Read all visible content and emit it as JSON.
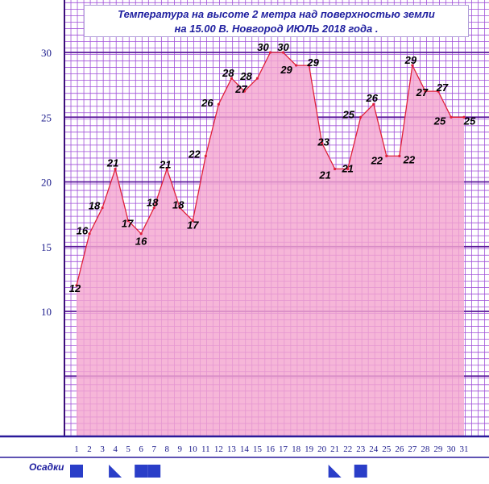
{
  "title_line1": "Температура  на  высоте  2  метра  над  поверхностью  земли",
  "title_line2": "на  15.00  В. Новгород  ИЮЛЬ  2018  года .",
  "precipitation_label": "Осадки",
  "colors": {
    "grid_minor": "#a050d8",
    "grid_major": "#5a189a",
    "area_fill": "#f4a6d0",
    "line": "#e0203a",
    "text": "#1c1c8c",
    "precip": "#2a3ec8"
  },
  "chart_data": {
    "type": "area",
    "title": "Температура  на  высоте  2  метра  над  поверхностью  земли  на  15.00  В. Новгород  ИЮЛЬ  2018  года .",
    "xlabel": "",
    "ylabel": "",
    "x": [
      1,
      2,
      3,
      4,
      5,
      6,
      7,
      8,
      9,
      10,
      11,
      12,
      13,
      14,
      15,
      16,
      17,
      18,
      19,
      20,
      21,
      22,
      23,
      24,
      25,
      26,
      27,
      28,
      29,
      30,
      31
    ],
    "values": [
      12,
      16,
      18,
      21,
      17,
      16,
      18,
      21,
      18,
      17,
      22,
      26,
      28,
      27,
      28,
      30,
      30,
      29,
      29,
      23,
      21,
      21,
      25,
      26,
      22,
      22,
      29,
      27,
      27,
      25,
      25
    ],
    "yticks": [
      10,
      15,
      20,
      25,
      30
    ],
    "ylim": [
      0,
      33.5
    ],
    "grid": true,
    "precipitation": [
      {
        "day": 1,
        "kind": "full"
      },
      {
        "day": 4,
        "kind": "partial"
      },
      {
        "day": 6,
        "kind": "full"
      },
      {
        "day": 7,
        "kind": "full"
      },
      {
        "day": 21,
        "kind": "partial"
      },
      {
        "day": 23,
        "kind": "full"
      }
    ]
  }
}
